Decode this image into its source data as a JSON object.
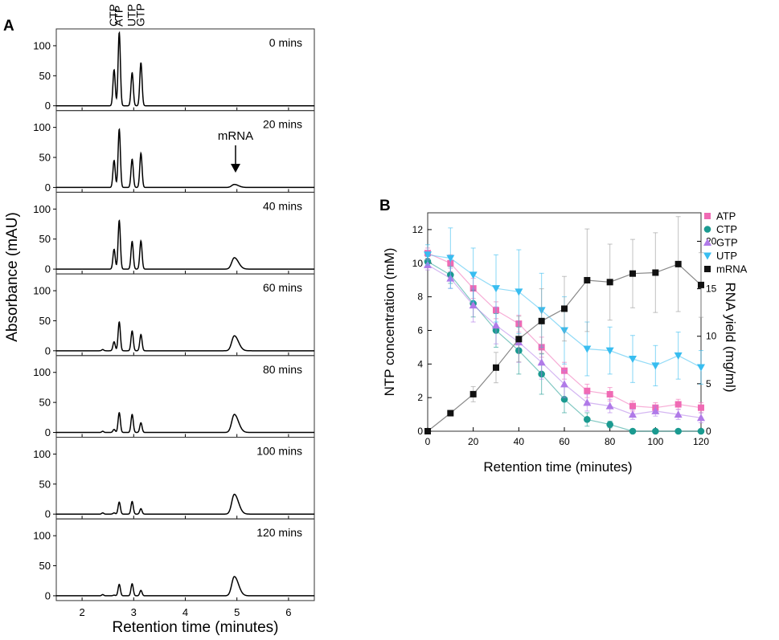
{
  "panel_a": {
    "label": "A",
    "ylabel": "Absorbance (mAU)",
    "xlabel": "Retention time (minutes)",
    "x_ticks": [
      "2",
      "3",
      "4",
      "5",
      "6"
    ],
    "y_ticks": [
      "0",
      "50",
      "100"
    ],
    "peak_labels": [
      "CTP",
      "ATP",
      "UTP",
      "GTP"
    ],
    "mrna_annotation": "mRNA"
  },
  "panel_b": {
    "label": "B",
    "ylabel_left": "NTP concentration (mM)",
    "ylabel_right": "RNA  yield  (mg/ml)",
    "xlabel": "Retention time (minutes)",
    "x_ticks": [
      "0",
      "20",
      "40",
      "60",
      "80",
      "100",
      "120"
    ],
    "y_left_ticks": [
      "0",
      "2",
      "4",
      "6",
      "8",
      "10",
      "12"
    ],
    "y_right_ticks": [
      "0",
      "5",
      "10",
      "15",
      "20"
    ]
  },
  "colors": {
    "ATP": "#f06ab4",
    "CTP": "#1a9a90",
    "GTP": "#b07ae8",
    "UTP": "#38bdf0",
    "mRNA": "#111111"
  },
  "chart_data": [
    {
      "type": "line",
      "title": "A",
      "xlabel": "Retention time (minutes)",
      "ylabel": "Absorbance (mAU)",
      "xlim": [
        1.5,
        6.5
      ],
      "ylim": [
        -8,
        128
      ],
      "peak_positions": {
        "CTP": 2.62,
        "ATP": 2.72,
        "UTP": 2.97,
        "GTP": 3.14,
        "mRNA": 4.95
      },
      "series": [
        {
          "name": "0 mins",
          "peaks": {
            "CTP": 60,
            "ATP": 122,
            "UTP": 55,
            "GTP": 72,
            "mRNA": 0
          }
        },
        {
          "name": "20 mins",
          "peaks": {
            "CTP": 45,
            "ATP": 97,
            "UTP": 47,
            "GTP": 57,
            "mRNA": 5
          }
        },
        {
          "name": "40 mins",
          "peaks": {
            "CTP": 33,
            "ATP": 81,
            "UTP": 46,
            "GTP": 47,
            "mRNA": 19
          }
        },
        {
          "name": "60 mins",
          "peaks": {
            "CTP": 15,
            "ATP": 48,
            "UTP": 33,
            "GTP": 27,
            "mRNA": 25
          }
        },
        {
          "name": "80 mins",
          "peaks": {
            "CTP": 5,
            "ATP": 33,
            "UTP": 30,
            "GTP": 16,
            "mRNA": 30
          }
        },
        {
          "name": "100 mins",
          "peaks": {
            "CTP": 2,
            "ATP": 20,
            "UTP": 21,
            "GTP": 9,
            "mRNA": 33
          }
        },
        {
          "name": "120 mins",
          "peaks": {
            "CTP": 1,
            "ATP": 19,
            "UTP": 20,
            "GTP": 9,
            "mRNA": 32
          }
        }
      ]
    },
    {
      "type": "line",
      "title": "B",
      "xlabel": "Retention time (minutes)",
      "ylabel": "NTP concentration (mM)",
      "ylabel_right": "RNA  yield  (mg/ml)",
      "xlim": [
        0,
        120
      ],
      "ylim": [
        0,
        13
      ],
      "ylim_right": [
        0,
        23
      ],
      "legend": "top-right",
      "x": [
        0,
        10,
        20,
        30,
        40,
        50,
        60,
        70,
        80,
        90,
        100,
        110,
        120
      ],
      "series": [
        {
          "name": "ATP",
          "marker": "square",
          "axis": "left",
          "values": [
            10.6,
            10.0,
            8.5,
            7.2,
            6.4,
            5.0,
            3.6,
            2.4,
            2.2,
            1.5,
            1.4,
            1.6,
            1.4
          ],
          "errors": [
            0.3,
            0.5,
            0.6,
            0.5,
            0.5,
            0.6,
            0.5,
            0.4,
            0.4,
            0.3,
            0.3,
            0.3,
            0.3
          ]
        },
        {
          "name": "CTP",
          "marker": "circle",
          "axis": "left",
          "values": [
            10.1,
            9.3,
            7.6,
            6.0,
            4.8,
            3.4,
            1.9,
            0.7,
            0.4,
            0.0,
            0.0,
            0.0,
            0.0
          ],
          "errors": [
            0.3,
            0.5,
            0.8,
            1.0,
            1.4,
            1.2,
            0.8,
            0.4,
            0.2,
            0.0,
            0.0,
            0.0,
            0.0
          ]
        },
        {
          "name": "GTP",
          "marker": "triangle-up",
          "axis": "left",
          "values": [
            9.9,
            9.1,
            7.5,
            6.3,
            5.3,
            4.1,
            2.8,
            1.7,
            1.5,
            1.0,
            1.2,
            1.0,
            0.8
          ],
          "errors": [
            0.3,
            0.6,
            1.0,
            1.1,
            1.2,
            1.0,
            0.8,
            0.5,
            0.4,
            0.3,
            0.3,
            0.3,
            0.3
          ]
        },
        {
          "name": "UTP",
          "marker": "triangle-down",
          "axis": "left",
          "values": [
            10.5,
            10.3,
            9.3,
            8.5,
            8.3,
            7.2,
            6.0,
            4.9,
            4.8,
            4.3,
            3.9,
            4.5,
            3.8
          ],
          "errors": [
            0.6,
            1.8,
            1.6,
            2.0,
            2.5,
            2.2,
            2.0,
            1.6,
            1.4,
            1.4,
            1.2,
            1.4,
            1.0
          ]
        },
        {
          "name": "mRNA",
          "marker": "square",
          "axis": "right",
          "values": [
            0.0,
            1.9,
            3.9,
            6.7,
            9.7,
            11.6,
            12.9,
            15.9,
            15.7,
            16.6,
            16.7,
            17.6,
            15.4
          ],
          "errors": [
            0.0,
            0.2,
            0.8,
            1.6,
            2.4,
            3.4,
            3.4,
            5.4,
            4.0,
            3.6,
            4.2,
            5.0,
            3.4
          ]
        }
      ]
    }
  ]
}
